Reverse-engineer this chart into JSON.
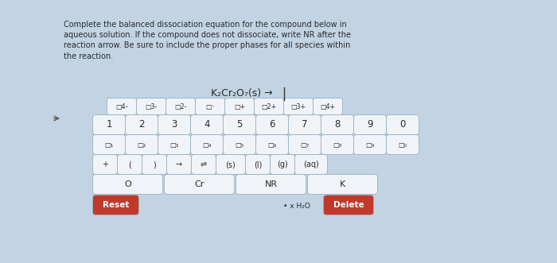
{
  "bg_color": "#c2d4e3",
  "title_text": "Complete the balanced dissociation equation for the compound below in\naqueous solution. If the compound does not dissociate, write NR after the\nreaction arrow. Be sure to include the proper phases for all species within\nthe reaction.",
  "equation": "K₂Cr₂O₇(s) →",
  "sup_labels": [
    "□4-",
    "□3-",
    "□2-",
    "□⁻",
    "□+",
    "□2+",
    "□3+",
    "□4+"
  ],
  "number_row": [
    "1",
    "2",
    "3",
    "4",
    "5",
    "6",
    "7",
    "8",
    "9",
    "0"
  ],
  "sub_labels": [
    "□₁",
    "□₂",
    "□₃",
    "□₄",
    "□₅",
    "□₆",
    "□₇",
    "□₈",
    "□₉",
    "□₀"
  ],
  "operator_row": [
    "+",
    "(",
    ")",
    "→",
    "⇌",
    "(s)",
    "(l)",
    "(g)",
    "(aq)"
  ],
  "element_row": [
    "O",
    "Cr",
    "NR",
    "K"
  ],
  "btn_white": "#f0f4f8",
  "btn_red": "#c0392b",
  "btn_edge": "#9ab0c0",
  "text_dark": "#2a2a2a",
  "text_red": "#ffffff"
}
